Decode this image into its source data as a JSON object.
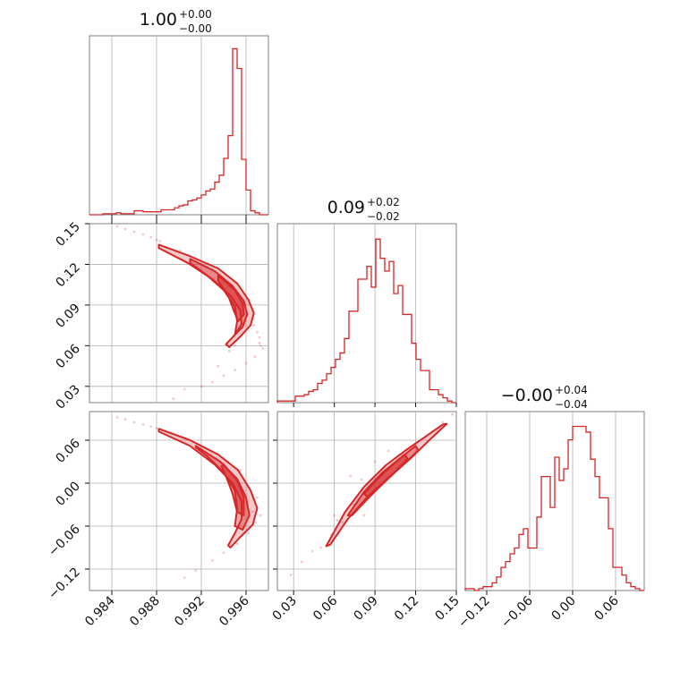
{
  "chart_data": {
    "type": "corner",
    "color": "#d62728",
    "grid": true,
    "params": [
      {
        "median": "1.00",
        "plus": "+0.00",
        "minus": "−0.00",
        "range": [
          0.982,
          0.998
        ]
      },
      {
        "median": "0.09",
        "plus": "+0.02",
        "minus": "−0.02",
        "range": [
          0.018,
          0.15
        ]
      },
      {
        "median": "−0.00",
        "plus": "+0.04",
        "minus": "−0.04",
        "range": [
          -0.15,
          0.1
        ]
      }
    ],
    "titles": [
      {
        "median": "1.00",
        "plus": "+0.00",
        "minus": "−0.00"
      },
      {
        "median": "0.09",
        "plus": "+0.02",
        "minus": "−0.02"
      },
      {
        "median": "−0.00",
        "plus": "+0.04",
        "minus": "−0.04"
      }
    ],
    "ticks": {
      "p0": {
        "values": [
          0.984,
          0.988,
          0.992,
          0.996
        ],
        "labels": [
          "0.984",
          "0.988",
          "0.992",
          "0.996"
        ]
      },
      "p1": {
        "values": [
          0.03,
          0.06,
          0.09,
          0.12,
          0.15
        ],
        "labels": [
          "0.03",
          "0.06",
          "0.09",
          "0.12",
          "0.15"
        ]
      },
      "p2": {
        "values": [
          -0.12,
          -0.06,
          0.0,
          0.06
        ],
        "labels": [
          "−0.12",
          "−0.06",
          "0.00",
          "0.06"
        ]
      }
    },
    "hist_p0": {
      "bin_start": 0.982,
      "bin_width": 0.0004,
      "counts": [
        0,
        0,
        0,
        1,
        1,
        1,
        2,
        1,
        1,
        1,
        4,
        4,
        3,
        3,
        3,
        3,
        5,
        5,
        5,
        7,
        9,
        10,
        14,
        15,
        17,
        20,
        24,
        26,
        33,
        40,
        57,
        80,
        168,
        148,
        56,
        25,
        4,
        2,
        0,
        0
      ]
    },
    "hist_p1": {
      "bin_start": 0.018,
      "bin_width": 0.0033,
      "counts": [
        1,
        1,
        1,
        1,
        4,
        4,
        5,
        7,
        8,
        12,
        14,
        18,
        22,
        27,
        31,
        40,
        57,
        57,
        77,
        77,
        85,
        72,
        102,
        90,
        82,
        88,
        68,
        73,
        55,
        55,
        37,
        27,
        20,
        20,
        8,
        8,
        5,
        3,
        1,
        0
      ]
    },
    "hist_p2": {
      "bin_start": -0.15,
      "bin_width": 0.00625,
      "counts": [
        1,
        1,
        0,
        1,
        2,
        2,
        4,
        7,
        12,
        15,
        19,
        22,
        29,
        32,
        22,
        22,
        38,
        59,
        59,
        43,
        69,
        57,
        63,
        78,
        85,
        85,
        85,
        82,
        68,
        59,
        48,
        48,
        32,
        12,
        12,
        8,
        4,
        2,
        1,
        0
      ]
    },
    "scatter_p0p1": [
      [
        0.9845,
        0.148
      ],
      [
        0.9852,
        0.146
      ],
      [
        0.986,
        0.144
      ],
      [
        0.9868,
        0.142
      ],
      [
        0.9875,
        0.14
      ],
      [
        0.988,
        0.138
      ],
      [
        0.9883,
        0.137
      ],
      [
        0.9901,
        0.13
      ],
      [
        0.9925,
        0.118
      ],
      [
        0.9948,
        0.102
      ],
      [
        0.9958,
        0.092
      ],
      [
        0.9967,
        0.075
      ],
      [
        0.9972,
        0.066
      ],
      [
        0.9973,
        0.06
      ],
      [
        0.9968,
        0.052
      ],
      [
        0.996,
        0.047
      ],
      [
        0.995,
        0.042
      ],
      [
        0.994,
        0.038
      ],
      [
        0.993,
        0.033
      ],
      [
        0.992,
        0.03
      ],
      [
        0.9905,
        0.028
      ],
      [
        0.9895,
        0.021
      ],
      [
        0.9972,
        0.062
      ],
      [
        0.9975,
        0.058
      ],
      [
        0.997,
        0.07
      ],
      [
        0.995,
        0.06
      ],
      [
        0.9945,
        0.056
      ],
      [
        0.9935,
        0.045
      ]
    ],
    "scatter_p0p2": [
      [
        0.9845,
        0.092
      ],
      [
        0.9852,
        0.089
      ],
      [
        0.986,
        0.085
      ],
      [
        0.9868,
        0.082
      ],
      [
        0.9875,
        0.079
      ],
      [
        0.988,
        0.077
      ],
      [
        0.9902,
        0.058
      ],
      [
        0.9925,
        0.04
      ],
      [
        0.994,
        0.028
      ],
      [
        0.9952,
        0.005
      ],
      [
        0.996,
        -0.02
      ],
      [
        0.9966,
        -0.04
      ],
      [
        0.9968,
        -0.055
      ],
      [
        0.9962,
        -0.07
      ],
      [
        0.9952,
        -0.085
      ],
      [
        0.994,
        -0.097
      ],
      [
        0.993,
        -0.108
      ],
      [
        0.9915,
        -0.122
      ],
      [
        0.9905,
        -0.132
      ],
      [
        0.997,
        -0.02
      ],
      [
        0.9973,
        -0.045
      ],
      [
        0.9955,
        0.018
      ],
      [
        0.9944,
        0.03
      ]
    ],
    "scatter_p1p2": [
      [
        0.028,
        -0.128
      ],
      [
        0.036,
        -0.11
      ],
      [
        0.044,
        -0.095
      ],
      [
        0.05,
        -0.09
      ],
      [
        0.058,
        -0.072
      ],
      [
        0.062,
        -0.052
      ],
      [
        0.066,
        -0.055
      ],
      [
        0.07,
        -0.035
      ],
      [
        0.074,
        -0.03
      ],
      [
        0.08,
        0.005
      ],
      [
        0.082,
        -0.045
      ],
      [
        0.11,
        0.04
      ],
      [
        0.12,
        0.055
      ],
      [
        0.132,
        0.072
      ],
      [
        0.14,
        0.085
      ],
      [
        0.147,
        0.096
      ],
      [
        0.06,
        -0.045
      ],
      [
        0.072,
        0.01
      ],
      [
        0.09,
        0.03
      ],
      [
        0.1,
        0.045
      ]
    ],
    "contours_p0p1": [
      [
        [
          0.9882,
          0.1345
        ],
        [
          0.991,
          0.126
        ],
        [
          0.9935,
          0.117
        ],
        [
          0.9952,
          0.106
        ],
        [
          0.9962,
          0.094
        ],
        [
          0.9967,
          0.084
        ],
        [
          0.9964,
          0.075
        ],
        [
          0.9954,
          0.066
        ],
        [
          0.9945,
          0.059
        ],
        [
          0.9942,
          0.061
        ],
        [
          0.995,
          0.068
        ],
        [
          0.9956,
          0.076
        ],
        [
          0.9955,
          0.086
        ],
        [
          0.9946,
          0.097
        ],
        [
          0.993,
          0.109
        ],
        [
          0.9908,
          0.121
        ],
        [
          0.9882,
          0.132
        ]
      ],
      [
        [
          0.991,
          0.124
        ],
        [
          0.9932,
          0.115
        ],
        [
          0.9948,
          0.104
        ],
        [
          0.9958,
          0.093
        ],
        [
          0.9961,
          0.083
        ],
        [
          0.9957,
          0.074
        ],
        [
          0.995,
          0.068
        ],
        [
          0.9952,
          0.078
        ],
        [
          0.995,
          0.089
        ],
        [
          0.994,
          0.101
        ],
        [
          0.9925,
          0.112
        ],
        [
          0.991,
          0.121
        ]
      ],
      [
        [
          0.9935,
          0.112
        ],
        [
          0.995,
          0.101
        ],
        [
          0.9957,
          0.091
        ],
        [
          0.9958,
          0.083
        ],
        [
          0.9953,
          0.078
        ],
        [
          0.9949,
          0.086
        ],
        [
          0.9944,
          0.097
        ],
        [
          0.9935,
          0.108
        ]
      ]
    ],
    "contours_p0p2": [
      [
        [
          0.9882,
          0.076
        ],
        [
          0.991,
          0.06
        ],
        [
          0.9935,
          0.04
        ],
        [
          0.9953,
          0.018
        ],
        [
          0.9964,
          -0.01
        ],
        [
          0.997,
          -0.035
        ],
        [
          0.9966,
          -0.058
        ],
        [
          0.9955,
          -0.075
        ],
        [
          0.9946,
          -0.09
        ],
        [
          0.9944,
          -0.087
        ],
        [
          0.995,
          -0.07
        ],
        [
          0.9956,
          -0.05
        ],
        [
          0.9956,
          -0.025
        ],
        [
          0.9948,
          0.0
        ],
        [
          0.9932,
          0.026
        ],
        [
          0.991,
          0.052
        ],
        [
          0.9882,
          0.072
        ]
      ],
      [
        [
          0.9915,
          0.052
        ],
        [
          0.9937,
          0.03
        ],
        [
          0.9952,
          0.006
        ],
        [
          0.996,
          -0.02
        ],
        [
          0.9963,
          -0.045
        ],
        [
          0.9957,
          -0.065
        ],
        [
          0.995,
          -0.06
        ],
        [
          0.9952,
          -0.036
        ],
        [
          0.995,
          -0.01
        ],
        [
          0.994,
          0.015
        ],
        [
          0.9925,
          0.038
        ],
        [
          0.9915,
          0.05
        ]
      ],
      [
        [
          0.994,
          0.026
        ],
        [
          0.9952,
          0.004
        ],
        [
          0.9958,
          -0.02
        ],
        [
          0.9958,
          -0.045
        ],
        [
          0.9952,
          -0.04
        ],
        [
          0.9948,
          -0.015
        ],
        [
          0.9942,
          0.01
        ],
        [
          0.9938,
          0.024
        ]
      ]
    ],
    "contours_p1p2": [
      [
        [
          0.054,
          -0.088
        ],
        [
          0.068,
          -0.04
        ],
        [
          0.082,
          -0.005
        ],
        [
          0.098,
          0.025
        ],
        [
          0.112,
          0.045
        ],
        [
          0.128,
          0.066
        ],
        [
          0.14,
          0.082
        ],
        [
          0.143,
          0.083
        ],
        [
          0.13,
          0.06
        ],
        [
          0.116,
          0.034
        ],
        [
          0.1,
          0.008
        ],
        [
          0.084,
          -0.02
        ],
        [
          0.07,
          -0.05
        ],
        [
          0.057,
          -0.086
        ]
      ],
      [
        [
          0.07,
          -0.045
        ],
        [
          0.082,
          -0.012
        ],
        [
          0.095,
          0.014
        ],
        [
          0.108,
          0.034
        ],
        [
          0.12,
          0.052
        ],
        [
          0.122,
          0.046
        ],
        [
          0.11,
          0.024
        ],
        [
          0.096,
          0.0
        ],
        [
          0.083,
          -0.025
        ],
        [
          0.073,
          -0.045
        ]
      ],
      [
        [
          0.082,
          -0.015
        ],
        [
          0.092,
          0.006
        ],
        [
          0.102,
          0.024
        ],
        [
          0.112,
          0.04
        ],
        [
          0.114,
          0.034
        ],
        [
          0.104,
          0.014
        ],
        [
          0.093,
          -0.006
        ],
        [
          0.085,
          -0.02
        ]
      ]
    ]
  }
}
